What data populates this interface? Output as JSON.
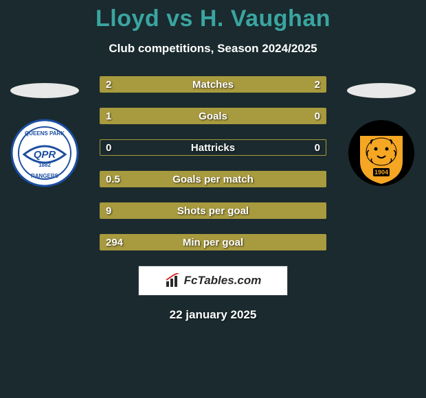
{
  "title_color": "#3aa5a0",
  "header": {
    "title": "Lloyd vs H. Vaughan",
    "subtitle": "Club competitions, Season 2024/2025"
  },
  "palette": {
    "bar_fill": "#a89a3e",
    "bar_border": "#a89a3e",
    "background": "#1a2a2e"
  },
  "bars": [
    {
      "label": "Matches",
      "left": "2",
      "right": "2",
      "left_fill_pct": 50,
      "right_fill_pct": 50
    },
    {
      "label": "Goals",
      "left": "1",
      "right": "0",
      "left_fill_pct": 80,
      "right_fill_pct": 20
    },
    {
      "label": "Hattricks",
      "left": "0",
      "right": "0",
      "left_fill_pct": 0,
      "right_fill_pct": 0
    },
    {
      "label": "Goals per match",
      "left": "0.5",
      "right": "",
      "left_fill_pct": 100,
      "right_fill_pct": 0
    },
    {
      "label": "Shots per goal",
      "left": "9",
      "right": "",
      "left_fill_pct": 100,
      "right_fill_pct": 0
    },
    {
      "label": "Min per goal",
      "left": "294",
      "right": "",
      "left_fill_pct": 100,
      "right_fill_pct": 0
    }
  ],
  "crest_left": {
    "name": "QPR",
    "primary": "#ffffff",
    "accent": "#1b4ea0",
    "year": "1882"
  },
  "crest_right": {
    "name": "Hull City",
    "primary": "#f5a623",
    "accent": "#000000",
    "year": "1904"
  },
  "footer": {
    "brand": "FcTables.com",
    "date": "22 january 2025"
  }
}
